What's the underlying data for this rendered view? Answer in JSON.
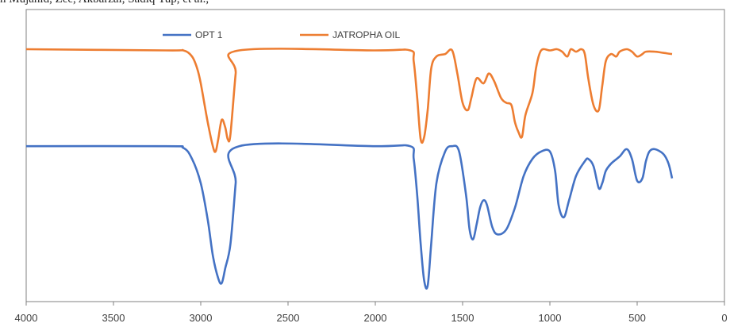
{
  "header_text": "n Mujahid, Zee, Akbarzai, Sadiq Yup, et al.,",
  "chart_data": {
    "type": "line",
    "title": "",
    "xlabel": "",
    "ylabel": "",
    "x_reversed": true,
    "xlim": [
      4000,
      0
    ],
    "x_ticks": [
      4000,
      3500,
      3000,
      2500,
      2000,
      1500,
      1000,
      500,
      0
    ],
    "y_axis_labels": false,
    "grid": false,
    "legend_position": "top-center",
    "series": [
      {
        "name": "OPT 1",
        "color": "#4472C4",
        "points": [
          [
            4000,
            60.2
          ],
          [
            3200,
            60.2
          ],
          [
            3100,
            59.5
          ],
          [
            3050,
            55
          ],
          [
            3000,
            45
          ],
          [
            2960,
            30
          ],
          [
            2930,
            15
          ],
          [
            2900,
            6
          ],
          [
            2880,
            4
          ],
          [
            2860,
            10
          ],
          [
            2830,
            20
          ],
          [
            2800,
            45
          ],
          [
            2780,
            60.2
          ],
          [
            2000,
            60.2
          ],
          [
            1800,
            60.2
          ],
          [
            1780,
            55
          ],
          [
            1760,
            40
          ],
          [
            1740,
            20
          ],
          [
            1720,
            5
          ],
          [
            1700,
            3
          ],
          [
            1680,
            20
          ],
          [
            1650,
            45
          ],
          [
            1600,
            58
          ],
          [
            1560,
            60.2
          ],
          [
            1520,
            58
          ],
          [
            1480,
            40
          ],
          [
            1460,
            26
          ],
          [
            1440,
            22
          ],
          [
            1420,
            28
          ],
          [
            1400,
            35
          ],
          [
            1380,
            38
          ],
          [
            1360,
            36
          ],
          [
            1330,
            27
          ],
          [
            1300,
            24
          ],
          [
            1250,
            26
          ],
          [
            1200,
            35
          ],
          [
            1150,
            48
          ],
          [
            1100,
            55
          ],
          [
            1050,
            58
          ],
          [
            1000,
            58
          ],
          [
            970,
            50
          ],
          [
            950,
            36
          ],
          [
            920,
            31
          ],
          [
            890,
            38
          ],
          [
            850,
            48
          ],
          [
            800,
            54
          ],
          [
            780,
            55
          ],
          [
            750,
            52
          ],
          [
            720,
            43
          ],
          [
            700,
            45
          ],
          [
            680,
            50
          ],
          [
            650,
            53
          ],
          [
            600,
            56
          ],
          [
            560,
            59
          ],
          [
            530,
            55
          ],
          [
            500,
            46
          ],
          [
            470,
            47
          ],
          [
            450,
            54
          ],
          [
            430,
            58
          ],
          [
            400,
            59
          ],
          [
            350,
            57
          ],
          [
            320,
            53
          ],
          [
            300,
            47
          ]
        ]
      },
      {
        "name": "JATROPHA OIL",
        "color": "#ED7D31",
        "points": [
          [
            4000,
            100
          ],
          [
            3200,
            99.5
          ],
          [
            3100,
            99.5
          ],
          [
            3050,
            97
          ],
          [
            3020,
            92
          ],
          [
            3000,
            86
          ],
          [
            2960,
            70
          ],
          [
            2930,
            60
          ],
          [
            2915,
            58
          ],
          [
            2900,
            63
          ],
          [
            2880,
            71
          ],
          [
            2860,
            68
          ],
          [
            2845,
            63
          ],
          [
            2830,
            65
          ],
          [
            2800,
            90
          ],
          [
            2780,
            99.5
          ],
          [
            2000,
            99.5
          ],
          [
            1800,
            99.5
          ],
          [
            1780,
            95
          ],
          [
            1760,
            80
          ],
          [
            1740,
            63
          ],
          [
            1720,
            64
          ],
          [
            1700,
            75
          ],
          [
            1680,
            92
          ],
          [
            1650,
            97
          ],
          [
            1600,
            98
          ],
          [
            1560,
            99.5
          ],
          [
            1530,
            90
          ],
          [
            1500,
            78
          ],
          [
            1470,
            75
          ],
          [
            1450,
            80
          ],
          [
            1420,
            88
          ],
          [
            1380,
            86
          ],
          [
            1350,
            90
          ],
          [
            1320,
            87
          ],
          [
            1280,
            80
          ],
          [
            1250,
            78
          ],
          [
            1220,
            77
          ],
          [
            1200,
            70
          ],
          [
            1180,
            66
          ],
          [
            1160,
            64
          ],
          [
            1140,
            73
          ],
          [
            1100,
            82
          ],
          [
            1080,
            92
          ],
          [
            1060,
            98
          ],
          [
            1040,
            100
          ],
          [
            1000,
            99.5
          ],
          [
            960,
            100
          ],
          [
            930,
            99
          ],
          [
            900,
            97
          ],
          [
            880,
            100
          ],
          [
            850,
            99
          ],
          [
            820,
            100
          ],
          [
            800,
            98
          ],
          [
            780,
            88
          ],
          [
            750,
            77
          ],
          [
            720,
            75
          ],
          [
            700,
            85
          ],
          [
            680,
            95
          ],
          [
            650,
            98
          ],
          [
            620,
            97
          ],
          [
            600,
            99
          ],
          [
            560,
            100
          ],
          [
            530,
            99
          ],
          [
            500,
            97
          ],
          [
            470,
            98
          ],
          [
            450,
            99
          ],
          [
            400,
            99
          ],
          [
            350,
            98.5
          ],
          [
            300,
            98
          ]
        ]
      }
    ]
  }
}
